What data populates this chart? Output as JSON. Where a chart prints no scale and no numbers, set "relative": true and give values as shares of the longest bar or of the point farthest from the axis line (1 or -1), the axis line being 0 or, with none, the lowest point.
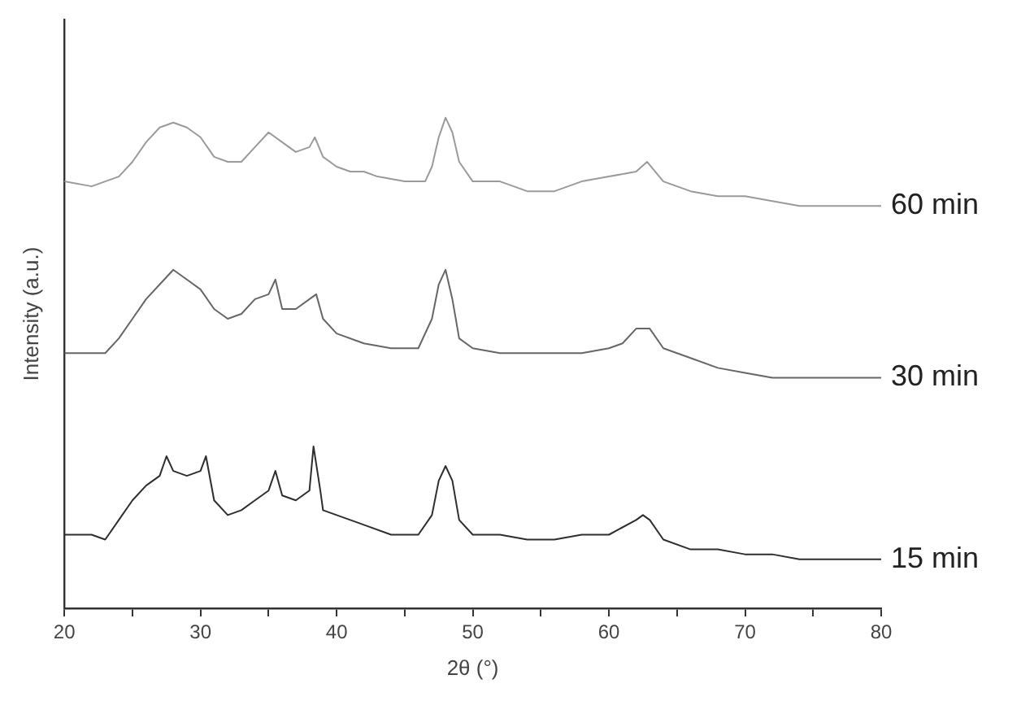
{
  "chart_data": {
    "type": "line",
    "relative": true,
    "xlabel": "2θ (°)",
    "ylabel": "Intensity (a.u.)",
    "xlim": [
      20,
      80
    ],
    "xticks": [
      20,
      {
        "value": 25,
        "label": null
      },
      30,
      {
        "value": 35,
        "label": null
      },
      40,
      {
        "value": 45,
        "label": null
      },
      50,
      {
        "value": 55,
        "label": null
      },
      60,
      {
        "value": 65,
        "label": null
      },
      70,
      {
        "value": 75,
        "label": null
      },
      80
    ],
    "grid": false,
    "legend": false,
    "marker": "none",
    "line_style": "solid",
    "series": [
      {
        "name": "60 min",
        "color": "#9a9a9a",
        "x": [
          20,
          22,
          24,
          25,
          26,
          27,
          28,
          29,
          30,
          31,
          32,
          33,
          34,
          35,
          36,
          37,
          38,
          38.4,
          39,
          40,
          41,
          42,
          43,
          45,
          46.5,
          47,
          47.5,
          48,
          48.5,
          49,
          50,
          52,
          54,
          56,
          58,
          60,
          62,
          62.8,
          64,
          66,
          68,
          70,
          72,
          74,
          76,
          78,
          80
        ],
        "values": [
          0.87,
          0.86,
          0.88,
          0.91,
          0.95,
          0.98,
          0.99,
          0.98,
          0.96,
          0.92,
          0.91,
          0.91,
          0.94,
          0.97,
          0.95,
          0.93,
          0.94,
          0.96,
          0.92,
          0.9,
          0.89,
          0.89,
          0.88,
          0.87,
          0.87,
          0.9,
          0.96,
          1,
          0.97,
          0.91,
          0.87,
          0.87,
          0.85,
          0.85,
          0.87,
          0.88,
          0.89,
          0.91,
          0.87,
          0.85,
          0.84,
          0.84,
          0.83,
          0.82,
          0.82,
          0.82,
          0.82
        ]
      },
      {
        "name": "30 min",
        "color": "#666666",
        "x": [
          20,
          22,
          23,
          24,
          25,
          26,
          27,
          28,
          29,
          30,
          31,
          32,
          33,
          34,
          35,
          35.5,
          36,
          37,
          38,
          38.5,
          39,
          40,
          42,
          44,
          46,
          47,
          47.5,
          48,
          48.5,
          49,
          50,
          52,
          54,
          56,
          58,
          60,
          61,
          62,
          63,
          64,
          66,
          68,
          70,
          72,
          74,
          76,
          78,
          80
        ],
        "values": [
          0.52,
          0.52,
          0.52,
          0.55,
          0.59,
          0.63,
          0.66,
          0.69,
          0.67,
          0.65,
          0.61,
          0.59,
          0.6,
          0.63,
          0.64,
          0.67,
          0.61,
          0.61,
          0.63,
          0.64,
          0.59,
          0.56,
          0.54,
          0.53,
          0.53,
          0.59,
          0.66,
          0.69,
          0.63,
          0.55,
          0.53,
          0.52,
          0.52,
          0.52,
          0.52,
          0.53,
          0.54,
          0.57,
          0.57,
          0.53,
          0.51,
          0.49,
          0.48,
          0.47,
          0.47,
          0.47,
          0.47,
          0.47
        ]
      },
      {
        "name": "15 min",
        "color": "#2e2e2e",
        "x": [
          20,
          22,
          23,
          24,
          25,
          26,
          27,
          27.5,
          28,
          29,
          30,
          30.4,
          31,
          32,
          33,
          34,
          35,
          35.5,
          36,
          37,
          38,
          38.3,
          38.8,
          39,
          40,
          42,
          44,
          46,
          47,
          47.5,
          48,
          48.5,
          49,
          50,
          52,
          54,
          56,
          58,
          60,
          62,
          62.5,
          63,
          64,
          66,
          68,
          70,
          72,
          74,
          76,
          78,
          80
        ],
        "values": [
          0.15,
          0.15,
          0.14,
          0.18,
          0.22,
          0.25,
          0.27,
          0.31,
          0.28,
          0.27,
          0.28,
          0.31,
          0.22,
          0.19,
          0.2,
          0.22,
          0.24,
          0.28,
          0.23,
          0.22,
          0.24,
          0.33,
          0.24,
          0.2,
          0.19,
          0.17,
          0.15,
          0.15,
          0.19,
          0.26,
          0.29,
          0.26,
          0.18,
          0.15,
          0.15,
          0.14,
          0.14,
          0.15,
          0.15,
          0.18,
          0.19,
          0.18,
          0.14,
          0.12,
          0.12,
          0.11,
          0.11,
          0.1,
          0.1,
          0.1,
          0.1
        ]
      }
    ]
  }
}
